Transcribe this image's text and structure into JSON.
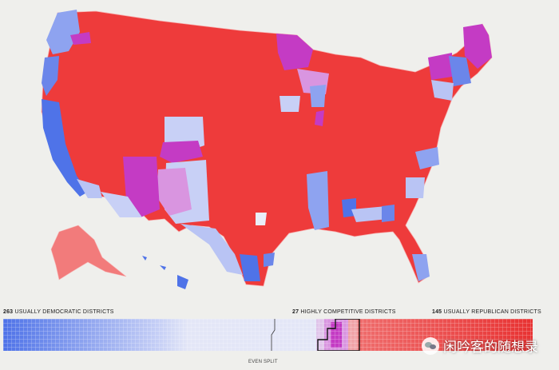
{
  "labels": {
    "dem_count": "263",
    "dem_text": "USUALLY DEMOCRATIC DISTRICTS",
    "comp_count": "27",
    "comp_text": "HIGHLY COMPETITIVE DISTRICTS",
    "rep_count": "145",
    "rep_text": "USUALLY REPUBLICAN DISTRICTS",
    "even_split": "EVEN SPLIT"
  },
  "watermark": "闲吟客的随想录",
  "colors": {
    "background": "#efefec",
    "democratic": "#4f73e8",
    "lean_democratic": "#b9c4f4",
    "competitive": "#c43bc4",
    "lean_competitive": "#d995e0",
    "republican": "#ee3b3b",
    "lean_republican": "#f27b7b"
  },
  "chart_data": {
    "type": "heatmap",
    "categories": [
      "Usually Democratic",
      "Highly Competitive",
      "Usually Republican"
    ],
    "values": [
      263,
      27,
      145
    ],
    "annotations": [
      "EVEN SPLIT"
    ]
  }
}
